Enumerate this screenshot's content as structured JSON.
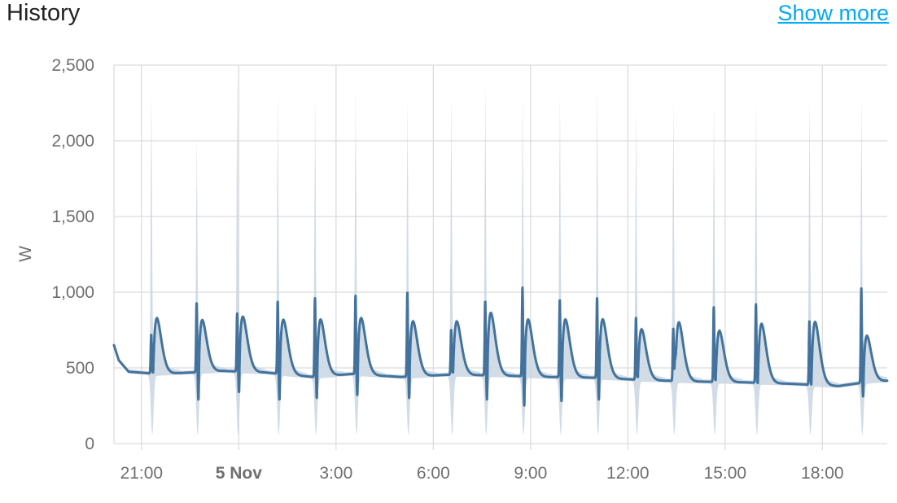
{
  "card": {
    "title": "History",
    "show_more_label": "Show more"
  },
  "colors": {
    "line": "#43739c",
    "band": "#c9d6e3",
    "grid": "#dcdcdc",
    "axis_text": "#6f6f6f",
    "link": "#03a9f4"
  },
  "chart_data": {
    "type": "line",
    "xlabel": "",
    "ylabel": "W",
    "ylim": [
      0,
      2500
    ],
    "yticks": [
      0,
      500,
      1000,
      1500,
      2000,
      2500
    ],
    "ytick_labels": [
      "0",
      "500",
      "1,000",
      "1,500",
      "2,000",
      "2,500"
    ],
    "xlim_hours": [
      20.15,
      44.0
    ],
    "xticks": [
      {
        "hour": 21,
        "label": "21:00",
        "bold": false
      },
      {
        "hour": 24,
        "label": "5 Nov",
        "bold": true
      },
      {
        "hour": 27,
        "label": "3:00",
        "bold": false
      },
      {
        "hour": 30,
        "label": "6:00",
        "bold": false
      },
      {
        "hour": 33,
        "label": "9:00",
        "bold": false
      },
      {
        "hour": 36,
        "label": "12:00",
        "bold": false
      },
      {
        "hour": 39,
        "label": "15:00",
        "bold": false
      },
      {
        "hour": 42,
        "label": "18:00",
        "bold": false
      }
    ],
    "grid": true,
    "baseline": [
      [
        20.15,
        650
      ],
      [
        20.3,
        550
      ],
      [
        20.6,
        475
      ],
      [
        21.5,
        460
      ],
      [
        22.6,
        470
      ],
      [
        23.5,
        480
      ],
      [
        24.8,
        470
      ],
      [
        26.3,
        440
      ],
      [
        27.5,
        460
      ],
      [
        29.0,
        440
      ],
      [
        30.5,
        455
      ],
      [
        32.0,
        450
      ],
      [
        33.5,
        440
      ],
      [
        35.0,
        435
      ],
      [
        36.5,
        420
      ],
      [
        38.0,
        410
      ],
      [
        39.5,
        405
      ],
      [
        41.0,
        395
      ],
      [
        42.5,
        380
      ],
      [
        43.5,
        410
      ],
      [
        44.0,
        415
      ]
    ],
    "cycles": [
      {
        "t": 21.3,
        "spike_max": 720,
        "spike_min": 470,
        "hump": 790,
        "band_max": 2000
      },
      {
        "t": 22.7,
        "spike_max": 930,
        "spike_min": 290,
        "hump": 780,
        "band_max": 1700
      },
      {
        "t": 23.95,
        "spike_max": 860,
        "spike_min": 340,
        "hump": 800,
        "band_max": 2100
      },
      {
        "t": 25.2,
        "spike_max": 940,
        "spike_min": 290,
        "hump": 780,
        "band_max": 1970
      },
      {
        "t": 26.35,
        "spike_max": 960,
        "spike_min": 300,
        "hump": 780,
        "band_max": 1930
      },
      {
        "t": 27.6,
        "spike_max": 980,
        "spike_min": 320,
        "hump": 790,
        "band_max": 2000
      },
      {
        "t": 29.2,
        "spike_max": 1000,
        "spike_min": 300,
        "hump": 770,
        "band_max": 1940
      },
      {
        "t": 30.55,
        "spike_max": 750,
        "spike_min": 470,
        "hump": 770,
        "band_max": 1940
      },
      {
        "t": 31.6,
        "spike_max": 940,
        "spike_min": 290,
        "hump": 820,
        "band_max": 2050
      },
      {
        "t": 32.75,
        "spike_max": 1030,
        "spike_min": 250,
        "hump": 780,
        "band_max": 1950
      },
      {
        "t": 33.9,
        "spike_max": 950,
        "spike_min": 280,
        "hump": 780,
        "band_max": 1970
      },
      {
        "t": 35.05,
        "spike_max": 960,
        "spike_min": 290,
        "hump": 780,
        "band_max": 1980
      },
      {
        "t": 36.25,
        "spike_max": 830,
        "spike_min": 440,
        "hump": 720,
        "band_max": 1850
      },
      {
        "t": 37.4,
        "spike_max": 760,
        "spike_min": 560,
        "hump": 760,
        "band_max": 1950
      },
      {
        "t": 38.65,
        "spike_max": 900,
        "spike_min": 420,
        "hump": 710,
        "band_max": 1880
      },
      {
        "t": 39.95,
        "spike_max": 920,
        "spike_min": 400,
        "hump": 750,
        "band_max": 1960
      },
      {
        "t": 41.6,
        "spike_max": 810,
        "spike_min": 390,
        "hump": 760,
        "band_max": 1960
      },
      {
        "t": 43.2,
        "spike_max": 1030,
        "spike_min": 310,
        "hump": 680,
        "band_max": 1950
      }
    ]
  }
}
